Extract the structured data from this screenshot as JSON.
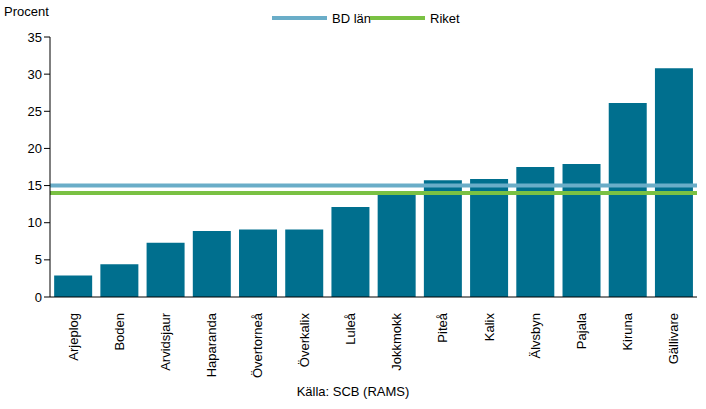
{
  "chart_data": {
    "type": "bar",
    "y_label": "Procent",
    "source": "Källa: SCB (RAMS)",
    "categories": [
      "Arjeplog",
      "Boden",
      "Arvidsjaur",
      "Haparanda",
      "Övertorneå",
      "Överkalix",
      "Luleå",
      "Jokkmokk",
      "Piteå",
      "Kalix",
      "Älvsbyn",
      "Pajala",
      "Kiruna",
      "Gällivare"
    ],
    "values": [
      2.9,
      4.4,
      7.3,
      8.9,
      9.1,
      9.1,
      12.1,
      13.8,
      15.7,
      15.9,
      17.5,
      17.9,
      26.1,
      30.8
    ],
    "color": "#006f8e",
    "ylim": [
      0,
      35
    ],
    "yticks": [
      0,
      5,
      10,
      15,
      20,
      25,
      30,
      35
    ],
    "reference_lines": [
      {
        "name": "BD län",
        "value": 15,
        "color": "#6aadc8"
      },
      {
        "name": "Riket",
        "value": 14,
        "color": "#7ac143"
      }
    ],
    "legend": "top",
    "grid": false
  }
}
